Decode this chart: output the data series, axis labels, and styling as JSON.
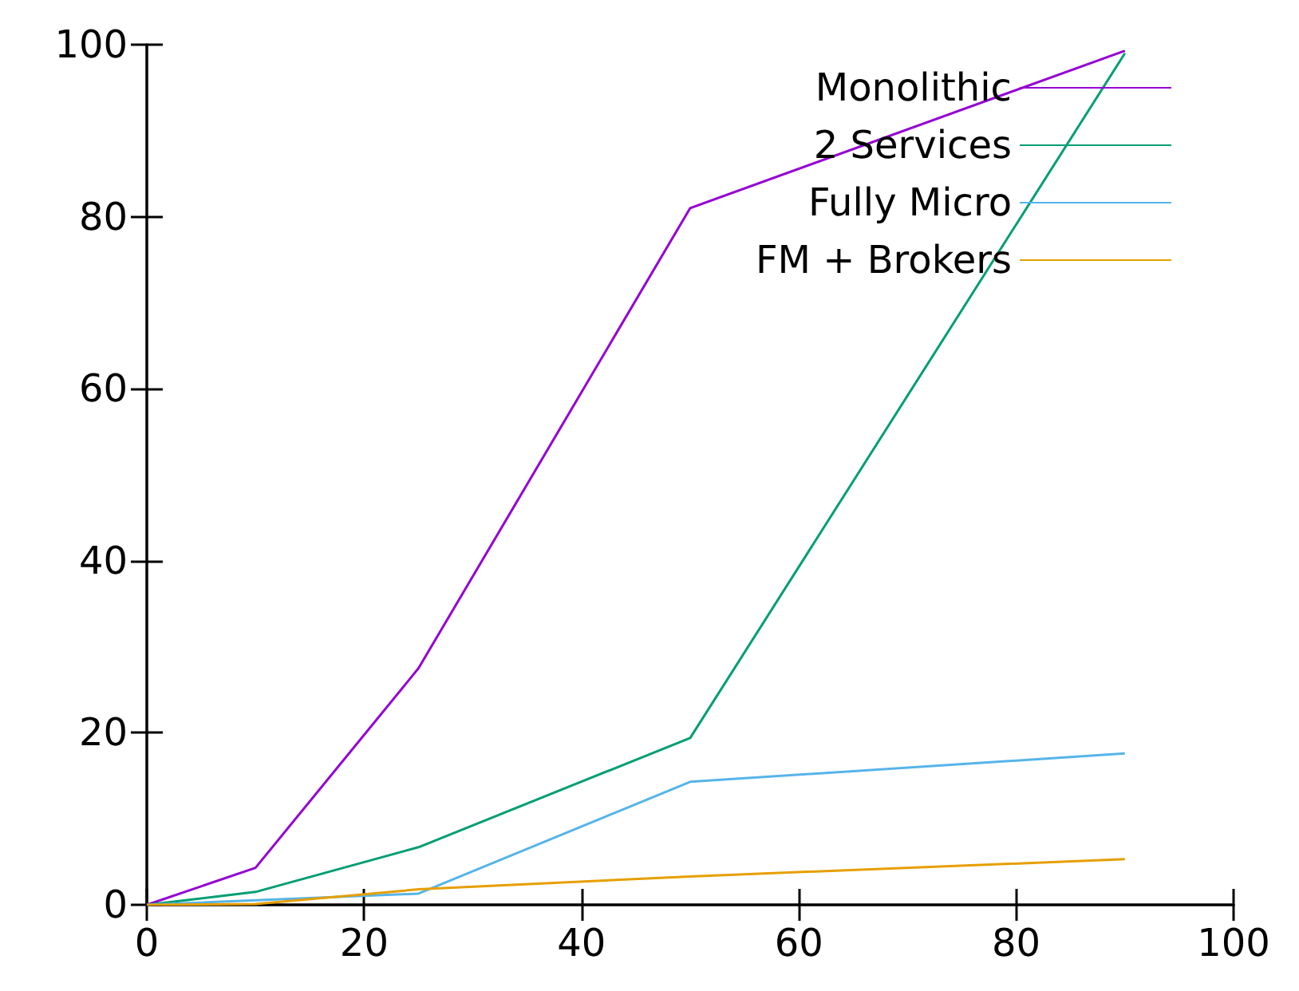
{
  "chart_data": {
    "type": "line",
    "x": [
      0,
      10,
      25,
      50,
      90
    ],
    "series": [
      {
        "name": "Monolithic",
        "color": "#9400d3",
        "values": [
          0,
          4.3,
          27.5,
          81,
          99.3
        ]
      },
      {
        "name": "2 Services",
        "color": "#009e73",
        "values": [
          0,
          1.5,
          6.7,
          19.4,
          99
        ]
      },
      {
        "name": "Fully Micro",
        "color": "#56b4e9",
        "values": [
          0,
          null,
          1.3,
          14.3,
          17.6
        ]
      },
      {
        "name": "FM + Brokers",
        "color": "#e69f00",
        "values": [
          0,
          0.1,
          1.8,
          3.3,
          5.3
        ]
      }
    ],
    "xlim": [
      0,
      100
    ],
    "xticks": [
      0,
      20,
      40,
      60,
      80,
      100
    ],
    "ylim": [
      0,
      100
    ],
    "yticks": [
      0,
      20,
      40,
      60,
      80,
      100
    ],
    "grid": false,
    "legend": "top right",
    "marker": "none",
    "line_style": "solid"
  }
}
